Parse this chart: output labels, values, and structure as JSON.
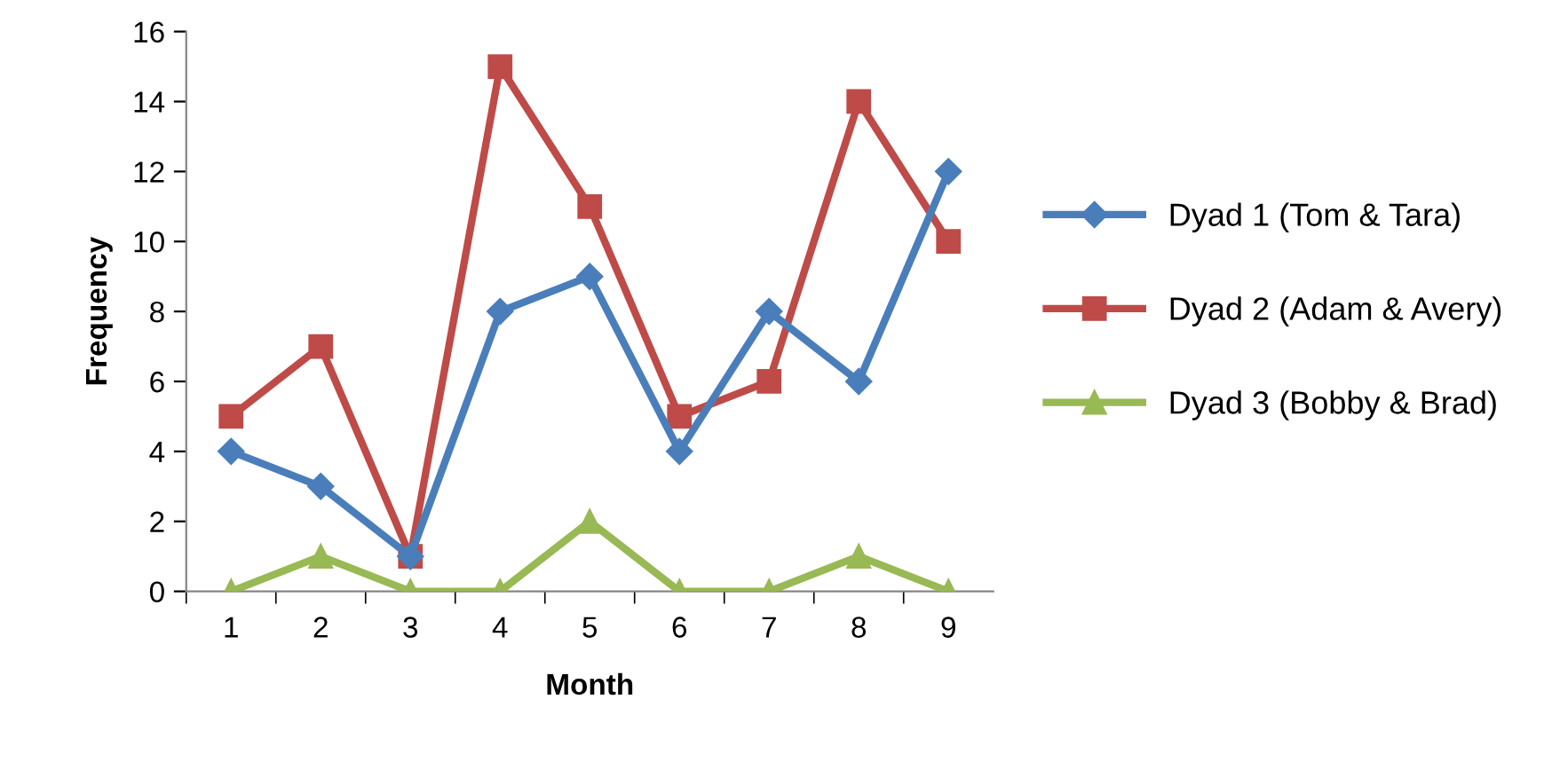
{
  "chart_data": {
    "type": "line",
    "xlabel": "Month",
    "ylabel": "Frequency",
    "categories": [
      "1",
      "2",
      "3",
      "4",
      "5",
      "6",
      "7",
      "8",
      "9"
    ],
    "series": [
      {
        "name": "Dyad 1 (Tom & Tara)",
        "color": "#4a7ebb",
        "marker": "diamond",
        "values": [
          4,
          3,
          1,
          8,
          9,
          4,
          8,
          6,
          12
        ]
      },
      {
        "name": "Dyad 2 (Adam & Avery)",
        "color": "#be4b48",
        "marker": "square",
        "values": [
          5,
          7,
          1,
          15,
          11,
          5,
          6,
          14,
          10
        ]
      },
      {
        "name": "Dyad 3 (Bobby & Brad)",
        "color": "#98b954",
        "marker": "triangle",
        "values": [
          0,
          1,
          0,
          0,
          2,
          0,
          0,
          1,
          0
        ]
      }
    ],
    "ylim": [
      0,
      16
    ],
    "yticks": [
      0,
      2,
      4,
      6,
      8,
      10,
      12,
      14,
      16
    ],
    "grid": false,
    "legend": "right",
    "line_style": "solid"
  }
}
